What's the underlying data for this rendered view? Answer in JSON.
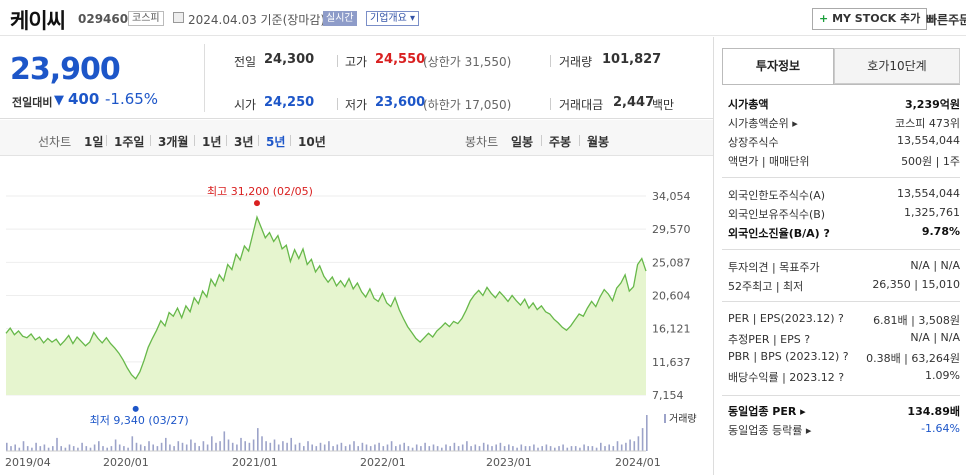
{
  "header": {
    "company_name": "케이씨",
    "stock_code": "029460",
    "market": "코스피",
    "date_text": "2024.04.03 기준(장마감)",
    "realtime": "실시간",
    "overview": "기업개요 ▾",
    "mystock_plus": "+",
    "mystock": "MY STOCK 추가",
    "quick_order": "빠른주문"
  },
  "price": {
    "current": "23,900",
    "change_label": "전일대비",
    "change_arrow": "▼",
    "change_value": "400",
    "change_rate": "-1.65%"
  },
  "quotes": {
    "prev_label": "전일",
    "prev_value": "24,300",
    "high_label": "고가",
    "high_value": "24,550",
    "high_extra": "(상한가 31,550)",
    "volume_label": "거래량",
    "volume_value": "101,827",
    "open_label": "시가",
    "open_value": "24,250",
    "low_label": "저가",
    "low_value": "23,600",
    "low_extra": "(하한가 17,050)",
    "amount_label": "거래대금",
    "amount_value": "2,447",
    "amount_unit": "백만"
  },
  "controls": {
    "line_label": "선차트",
    "line_periods": [
      "1일",
      "1주일",
      "3개월",
      "1년",
      "3년",
      "5년",
      "10년"
    ],
    "active_period": "5년",
    "candle_label": "봉차트",
    "candle_periods": [
      "일봉",
      "주봉",
      "월봉"
    ]
  },
  "chart_data": {
    "type": "area",
    "y_ticks": [
      "34,054",
      "29,570",
      "25,087",
      "20,604",
      "16,121",
      "11,637",
      "7,154"
    ],
    "x_ticks": [
      "2019/04",
      "2020/01",
      "2021/01",
      "2022/01",
      "2023/01",
      "2024/01"
    ],
    "ylim": [
      7154,
      34054
    ],
    "high_annotation": "최고 31,200 (02/05)",
    "low_annotation": "최저 9,340 (03/27)",
    "volume_legend": "거래량",
    "colors": {
      "line": "#67b84a",
      "fill": "#e6f5cf",
      "volume": "#9ca3c9",
      "high": "#d92020",
      "low": "#1d56c8"
    },
    "series": [
      {
        "values": [
          15500,
          16200,
          15300,
          15800,
          15100,
          14900,
          15400,
          14600,
          15000,
          14200,
          14800,
          14300,
          14700,
          13900,
          14500,
          15200,
          14100,
          15000,
          14400,
          13800,
          14300,
          15600,
          14800,
          14200,
          14900,
          14100,
          13500,
          12800,
          11900,
          10800,
          9900,
          9340,
          10300,
          11800,
          13600,
          14800,
          15900,
          17200,
          16500,
          18300,
          17800,
          18900,
          17600,
          19200,
          18400,
          20300,
          19500,
          21200,
          20400,
          22800,
          21900,
          23400,
          22600,
          24800,
          24100,
          26200,
          25400,
          27300,
          26600,
          28900,
          31200,
          29800,
          28400,
          29100,
          27900,
          28700,
          26900,
          27400,
          25200,
          26800,
          25600,
          26900,
          24800,
          25500,
          23800,
          24600,
          23200,
          22400,
          23100,
          21900,
          22600,
          21800,
          22900,
          21500,
          22300,
          21100,
          20400,
          21500,
          20200,
          19800,
          20900,
          19600,
          19100,
          20300,
          18700,
          17500,
          16400,
          15600,
          14800,
          14300,
          14900,
          15500,
          15000,
          15800,
          16300,
          16900,
          16400,
          17100,
          16800,
          17500,
          18600,
          19900,
          20700,
          21300,
          20600,
          21700,
          20900,
          20300,
          21100,
          20500,
          19800,
          20600,
          19900,
          19300,
          20100,
          18900,
          19600,
          18700,
          19200,
          18400,
          18100,
          17400,
          16900,
          16300,
          15900,
          16500,
          17300,
          18100,
          17800,
          18900,
          19800,
          19100,
          20400,
          21400,
          20800,
          19900,
          21600,
          22300,
          23400,
          21200,
          21800,
          24800,
          25600,
          23900
        ]
      }
    ],
    "volume": [
      5,
      3,
      4,
      2,
      6,
      3,
      2,
      5,
      3,
      4,
      2,
      3,
      8,
      3,
      2,
      4,
      3,
      2,
      5,
      3,
      2,
      4,
      6,
      3,
      2,
      3,
      7,
      4,
      3,
      2,
      9,
      5,
      4,
      3,
      6,
      4,
      3,
      5,
      8,
      4,
      3,
      6,
      5,
      4,
      7,
      5,
      3,
      6,
      4,
      9,
      5,
      6,
      12,
      7,
      5,
      4,
      8,
      6,
      5,
      7,
      14,
      9,
      6,
      5,
      7,
      4,
      6,
      5,
      8,
      4,
      5,
      3,
      6,
      4,
      3,
      5,
      4,
      6,
      3,
      4,
      5,
      3,
      4,
      6,
      3,
      5,
      4,
      3,
      4,
      5,
      3,
      4,
      6,
      3,
      4,
      5,
      3,
      2,
      4,
      3,
      5,
      3,
      4,
      3,
      2,
      4,
      3,
      5,
      3,
      4,
      6,
      3,
      4,
      3,
      5,
      4,
      3,
      4,
      5,
      3,
      4,
      3,
      2,
      4,
      3,
      3,
      4,
      2,
      3,
      4,
      3,
      2,
      3,
      4,
      2,
      3,
      3,
      2,
      4,
      3,
      3,
      2,
      5,
      3,
      4,
      3,
      6,
      4,
      5,
      7,
      6,
      9,
      14,
      22
    ]
  },
  "right": {
    "tab_invest": "투자정보",
    "tab_orderbook": "호가10단계",
    "rows1": [
      {
        "label": "시가총액",
        "value": "3,239억원",
        "bold": true
      },
      {
        "label": "시가총액순위 ▸",
        "value": "코스피 473위"
      },
      {
        "label": "상장주식수",
        "value": "13,554,044"
      },
      {
        "label": "액면가 | 매매단위",
        "value": "500원 | 1주"
      }
    ],
    "rows2": [
      {
        "label": "외국인한도주식수(A)",
        "value": "13,554,044"
      },
      {
        "label": "외국인보유주식수(B)",
        "value": "1,325,761"
      },
      {
        "label": "외국인소진율(B/A) ?",
        "value": "9.78%",
        "bold": true
      }
    ],
    "rows3": [
      {
        "label": "투자의견 | 목표주가",
        "value": "N/A | N/A"
      },
      {
        "label": "52주최고 | 최저",
        "value": "26,350 | 15,010"
      }
    ],
    "rows4": [
      {
        "label": "PER | EPS(2023.12) ?",
        "value": "6.81배 | 3,508원"
      },
      {
        "label": "추정PER | EPS ?",
        "value": "N/A | N/A"
      },
      {
        "label": "PBR | BPS (2023.12) ?",
        "value": "0.38배 | 63,264원"
      },
      {
        "label": "배당수익률 | 2023.12 ?",
        "value": "1.09%"
      }
    ],
    "rows5": [
      {
        "label": "동일업종 PER ▸",
        "value": "134.89배",
        "bold": true
      },
      {
        "label": "동일업종 등락률 ▸",
        "value": "-1.64%",
        "blue": true
      }
    ]
  }
}
